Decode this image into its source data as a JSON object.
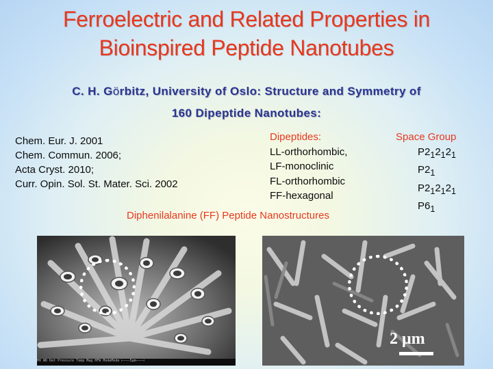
{
  "title": {
    "line1": "Ferroelectric and  Related Properties in",
    "line2": "Bioinspired Peptide Nanotubes"
  },
  "author": {
    "line1_name": "C. H. G",
    "line1_umlaut": "ö",
    "line1_rest": "rbitz, University of Oslo: Structure and Symmetry of",
    "line2": "160  Dipeptide Nanotubes:"
  },
  "references": [
    "Chem. Eur. J. 2001",
    "Chem. Commun. 2006;",
    "Acta Cryst. 2010;",
    "Curr. Opin. Sol. St. Mater. Sci. 2002"
  ],
  "dipeptides": {
    "header": "Dipeptides:",
    "items": [
      "LL-orthorhombic,",
      "LF-monoclinic",
      "FL-orthorhombic",
      "FF-hexagonal"
    ]
  },
  "space_group": {
    "header": "Space Group",
    "items": [
      {
        "parts": [
          "P2",
          "1",
          "2",
          "1",
          "2",
          "1"
        ]
      },
      {
        "parts": [
          "P2",
          "1"
        ]
      },
      {
        "parts": [
          "P2",
          "1",
          "2",
          "1",
          "2",
          "1"
        ]
      },
      {
        "parts": [
          "P6",
          "1"
        ]
      }
    ]
  },
  "subtitle": "Diphenilalanine (FF) Peptide Nanostructures",
  "images": {
    "left_info_bar": "HV   WD   Det  Pressure Temp  Mag  HFW  ModeMode                    ⊢———5µm———⊣",
    "right_scale_label": "2 μm"
  }
}
